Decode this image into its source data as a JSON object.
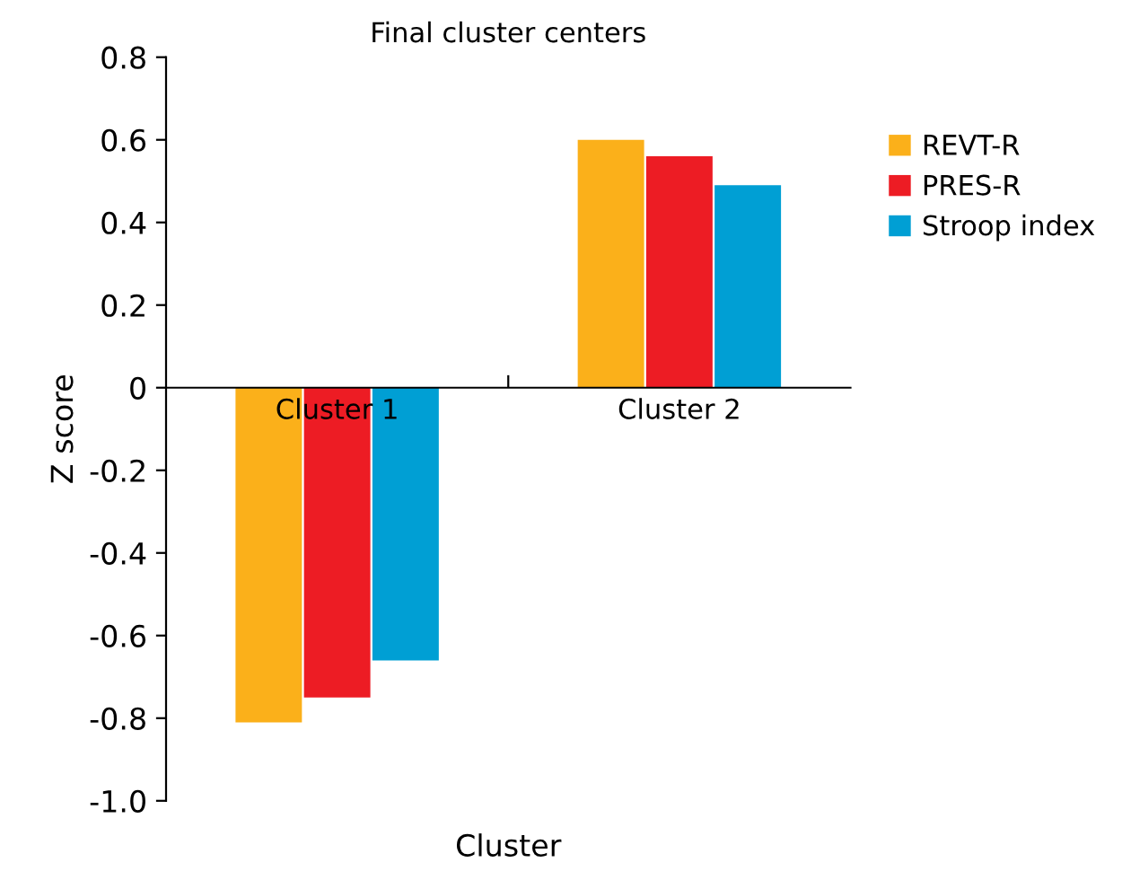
{
  "chart_data": {
    "type": "bar",
    "title": "Final cluster centers",
    "xlabel": "Cluster",
    "ylabel": "Z score",
    "categories": [
      "Cluster 1",
      "Cluster 2"
    ],
    "series": [
      {
        "name": "REVT-R",
        "color": "#fbb01a",
        "values": [
          -0.81,
          0.6
        ]
      },
      {
        "name": "PRES-R",
        "color": "#ed1c24",
        "values": [
          -0.75,
          0.56
        ]
      },
      {
        "name": "Stroop index",
        "color": "#009fd4",
        "values": [
          -0.66,
          0.49
        ]
      }
    ],
    "ylim": [
      -1.0,
      0.8
    ],
    "yticks": [
      {
        "value": 0.8,
        "label": "0.8"
      },
      {
        "value": 0.6,
        "label": "0.6"
      },
      {
        "value": 0.4,
        "label": "0.4"
      },
      {
        "value": 0.2,
        "label": "0.2"
      },
      0,
      {
        "value": -0.2,
        "label": "-0.2"
      },
      {
        "value": -0.4,
        "label": "-0.4"
      },
      {
        "value": -0.6,
        "label": "-0.6"
      },
      {
        "value": -0.8,
        "label": "-0.8"
      },
      {
        "value": -1.0,
        "label": "-1.0"
      }
    ],
    "grid": false,
    "legend": "top right"
  }
}
